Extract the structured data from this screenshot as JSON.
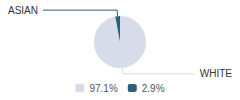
{
  "chart_data": {
    "type": "pie",
    "categories": [
      "WHITE",
      "ASIAN"
    ],
    "values": [
      97.1,
      2.9
    ],
    "value_labels": [
      "97.1%",
      "2.9%"
    ],
    "colors": [
      "#d6dde8",
      "#2d5f7a"
    ],
    "legend": "bottom"
  }
}
